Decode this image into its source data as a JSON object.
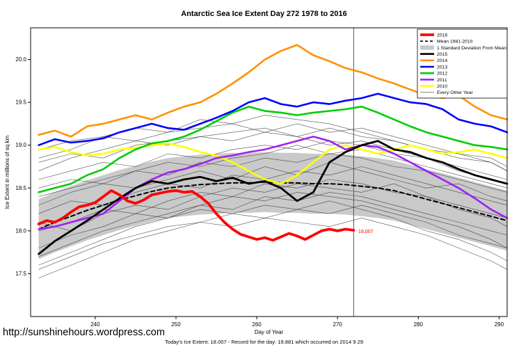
{
  "footer": {
    "url": "http://sunshinehours.wordpress.com",
    "caption": "Today's Ice Extent: 18.007  - Record for the day: 19.881 which occurred on 2014 9 29"
  },
  "chart_data": {
    "type": "line",
    "title": "Antarctic Sea Ice Extent Day 272 1978 to 2016",
    "xlabel": "Day of Year",
    "ylabel": "Ice Extent in millions of sq km",
    "xlim": [
      232,
      291
    ],
    "ylim": [
      17.0,
      20.37
    ],
    "xticks": [
      240,
      250,
      260,
      270,
      280,
      290
    ],
    "yticks": [
      17.5,
      18.0,
      18.5,
      19.0,
      19.5,
      20.0
    ],
    "vline_x": 272,
    "annotation": {
      "x": 272.4,
      "y": 17.99,
      "text": "18.007",
      "color": "#ff0000"
    },
    "band": {
      "name": "1 Standard Deviation From Mean",
      "color": "#c9c9c9",
      "x": [
        233,
        235,
        237,
        239,
        241,
        243,
        245,
        247,
        249,
        251,
        253,
        255,
        257,
        259,
        261,
        263,
        265,
        267,
        269,
        271,
        273,
        275,
        277,
        279,
        281,
        283,
        285,
        287,
        289,
        291
      ],
      "upper": [
        18.37,
        18.45,
        18.52,
        18.59,
        18.65,
        18.71,
        18.76,
        18.81,
        18.85,
        18.87,
        18.89,
        18.9,
        18.91,
        18.91,
        18.92,
        18.91,
        18.91,
        18.9,
        18.9,
        18.89,
        18.87,
        18.85,
        18.82,
        18.77,
        18.72,
        18.67,
        18.62,
        18.57,
        18.52,
        18.47
      ],
      "lower": [
        17.67,
        17.75,
        17.82,
        17.89,
        17.95,
        18.01,
        18.06,
        18.11,
        18.15,
        18.17,
        18.19,
        18.2,
        18.21,
        18.21,
        18.22,
        18.21,
        18.21,
        18.2,
        18.2,
        18.19,
        18.17,
        18.15,
        18.12,
        18.07,
        18.02,
        17.97,
        17.92,
        17.87,
        17.82,
        17.77
      ]
    },
    "other_years": {
      "color": "#3a3a3a",
      "width": 0.6,
      "x": [
        233,
        237,
        241,
        245,
        249,
        253,
        257,
        261,
        265,
        269,
        273,
        277,
        281,
        285,
        289,
        291
      ],
      "lines": [
        [
          17.55,
          17.7,
          17.85,
          17.95,
          18.05,
          18.1,
          18.2,
          18.15,
          18.25,
          18.2,
          18.3,
          18.2,
          18.1,
          17.95,
          17.85,
          17.8
        ],
        [
          17.8,
          17.95,
          18.05,
          18.2,
          18.15,
          18.3,
          18.25,
          18.4,
          18.35,
          18.45,
          18.4,
          18.3,
          18.2,
          18.1,
          18.0,
          17.95
        ],
        [
          18.0,
          18.1,
          18.25,
          18.2,
          18.35,
          18.45,
          18.4,
          18.55,
          18.5,
          18.6,
          18.55,
          18.45,
          18.4,
          18.3,
          18.2,
          18.15
        ],
        [
          18.2,
          18.35,
          18.3,
          18.45,
          18.55,
          18.5,
          18.65,
          18.6,
          18.7,
          18.65,
          18.75,
          18.65,
          18.55,
          18.45,
          18.35,
          18.3
        ],
        [
          18.4,
          18.5,
          18.6,
          18.7,
          18.65,
          18.8,
          18.75,
          18.85,
          18.8,
          18.9,
          18.85,
          18.75,
          18.7,
          18.6,
          18.5,
          18.45
        ],
        [
          18.6,
          18.7,
          18.8,
          18.75,
          18.9,
          18.85,
          18.95,
          19.0,
          18.95,
          19.05,
          19.0,
          18.9,
          18.85,
          18.75,
          18.65,
          18.6
        ],
        [
          18.8,
          18.9,
          18.85,
          19.0,
          19.05,
          19.1,
          19.05,
          19.15,
          19.1,
          19.2,
          19.1,
          19.05,
          18.95,
          18.85,
          18.8,
          18.7
        ],
        [
          18.95,
          19.05,
          19.1,
          19.05,
          19.15,
          19.2,
          19.25,
          19.15,
          19.25,
          19.15,
          19.2,
          19.1,
          19.0,
          18.9,
          18.85,
          18.75
        ],
        [
          17.45,
          17.6,
          17.75,
          17.9,
          18.0,
          18.1,
          18.05,
          18.15,
          18.1,
          18.05,
          18.15,
          18.05,
          17.95,
          17.8,
          17.65,
          17.55
        ],
        [
          18.1,
          18.0,
          18.2,
          18.3,
          18.25,
          18.4,
          18.5,
          18.45,
          18.55,
          18.5,
          18.45,
          18.55,
          18.4,
          18.25,
          18.15,
          18.05
        ],
        [
          18.3,
          18.45,
          18.55,
          18.5,
          18.6,
          18.7,
          18.6,
          18.75,
          18.65,
          18.8,
          18.7,
          18.6,
          18.5,
          18.55,
          18.4,
          18.35
        ],
        [
          18.5,
          18.6,
          18.55,
          18.7,
          18.8,
          18.75,
          18.85,
          18.9,
          19.0,
          18.9,
          18.95,
          18.85,
          18.75,
          18.65,
          18.55,
          18.5
        ],
        [
          17.7,
          17.85,
          18.0,
          18.1,
          18.2,
          18.3,
          18.4,
          18.35,
          18.45,
          18.4,
          18.35,
          18.25,
          18.15,
          18.05,
          17.9,
          17.8
        ],
        [
          18.7,
          18.85,
          18.95,
          19.05,
          19.0,
          19.1,
          19.15,
          19.2,
          19.1,
          19.0,
          19.05,
          18.95,
          18.85,
          18.7,
          18.6,
          18.55
        ],
        [
          18.85,
          18.95,
          19.1,
          19.2,
          19.15,
          19.3,
          19.25,
          19.35,
          19.3,
          19.25,
          19.15,
          19.05,
          18.95,
          18.9,
          18.8,
          18.7
        ],
        [
          17.6,
          17.75,
          17.9,
          18.05,
          18.15,
          18.25,
          18.2,
          18.3,
          18.25,
          18.35,
          18.25,
          18.15,
          18.0,
          17.9,
          17.75,
          17.65
        ]
      ]
    },
    "series": [
      {
        "name": "Mean 1981-2010",
        "color": "#000000",
        "width": 2,
        "dash": "6,4",
        "x": [
          233,
          235,
          237,
          239,
          241,
          243,
          245,
          247,
          249,
          251,
          253,
          255,
          257,
          259,
          261,
          263,
          265,
          267,
          269,
          271,
          273,
          275,
          277,
          279,
          281,
          283,
          285,
          287,
          289,
          291
        ],
        "y": [
          18.02,
          18.1,
          18.17,
          18.24,
          18.3,
          18.36,
          18.41,
          18.46,
          18.5,
          18.52,
          18.54,
          18.55,
          18.56,
          18.56,
          18.57,
          18.56,
          18.56,
          18.55,
          18.55,
          18.54,
          18.52,
          18.5,
          18.47,
          18.42,
          18.37,
          18.32,
          18.27,
          18.22,
          18.17,
          18.12
        ]
      },
      {
        "name": "2010",
        "color": "#ffff00",
        "width": 2.6,
        "x": [
          233,
          235,
          237,
          239,
          241,
          243,
          245,
          247,
          249,
          251,
          253,
          255,
          257,
          259,
          261,
          263,
          265,
          267,
          269,
          271,
          273,
          275,
          277,
          279,
          281,
          283,
          285,
          287,
          289,
          291
        ],
        "y": [
          18.95,
          18.98,
          18.92,
          18.88,
          18.9,
          18.95,
          18.97,
          19.0,
          19.02,
          18.98,
          18.92,
          18.88,
          18.8,
          18.7,
          18.6,
          18.55,
          18.65,
          18.8,
          18.95,
          19.0,
          18.95,
          18.9,
          18.95,
          19.0,
          18.95,
          18.9,
          18.92,
          18.95,
          18.9,
          18.85
        ]
      },
      {
        "name": "2011",
        "color": "#a020f0",
        "width": 2.6,
        "x": [
          233,
          235,
          237,
          239,
          241,
          243,
          245,
          247,
          249,
          251,
          253,
          255,
          257,
          259,
          261,
          263,
          265,
          267,
          269,
          271,
          273,
          275,
          277,
          279,
          281,
          283,
          285,
          287,
          289,
          291
        ],
        "y": [
          18.02,
          18.05,
          18.1,
          18.15,
          18.2,
          18.35,
          18.5,
          18.6,
          18.68,
          18.72,
          18.78,
          18.85,
          18.88,
          18.92,
          18.95,
          19.0,
          19.05,
          19.1,
          19.05,
          18.95,
          19.0,
          18.98,
          18.9,
          18.8,
          18.7,
          18.6,
          18.5,
          18.38,
          18.25,
          18.15
        ]
      },
      {
        "name": "2012",
        "color": "#00cd00",
        "width": 2.6,
        "x": [
          233,
          235,
          237,
          239,
          241,
          243,
          245,
          247,
          249,
          251,
          253,
          255,
          257,
          259,
          261,
          263,
          265,
          267,
          269,
          271,
          273,
          275,
          277,
          279,
          281,
          283,
          285,
          287,
          289,
          291
        ],
        "y": [
          18.45,
          18.5,
          18.55,
          18.65,
          18.72,
          18.85,
          18.95,
          19.02,
          19.05,
          19.1,
          19.18,
          19.28,
          19.38,
          19.45,
          19.4,
          19.38,
          19.35,
          19.38,
          19.4,
          19.42,
          19.45,
          19.38,
          19.3,
          19.22,
          19.15,
          19.1,
          19.05,
          19.0,
          18.98,
          18.95
        ]
      },
      {
        "name": "2013",
        "color": "#0000ff",
        "width": 2.6,
        "x": [
          233,
          235,
          237,
          239,
          241,
          243,
          245,
          247,
          249,
          251,
          253,
          255,
          257,
          259,
          261,
          263,
          265,
          267,
          269,
          271,
          273,
          275,
          277,
          279,
          281,
          283,
          285,
          287,
          289,
          291
        ],
        "y": [
          19.0,
          19.07,
          19.03,
          19.05,
          19.08,
          19.15,
          19.2,
          19.25,
          19.2,
          19.18,
          19.25,
          19.32,
          19.4,
          19.5,
          19.55,
          19.48,
          19.45,
          19.5,
          19.48,
          19.52,
          19.55,
          19.6,
          19.55,
          19.5,
          19.48,
          19.42,
          19.3,
          19.25,
          19.22,
          19.15
        ]
      },
      {
        "name": "2014",
        "color": "#ff9100",
        "width": 2.6,
        "x": [
          233,
          235,
          237,
          239,
          241,
          243,
          245,
          247,
          249,
          251,
          253,
          255,
          257,
          259,
          261,
          263,
          265,
          267,
          269,
          271,
          273,
          275,
          277,
          279,
          281,
          283,
          285,
          287,
          289,
          291
        ],
        "y": [
          19.12,
          19.17,
          19.1,
          19.22,
          19.25,
          19.3,
          19.35,
          19.3,
          19.38,
          19.45,
          19.5,
          19.6,
          19.72,
          19.85,
          20.0,
          20.1,
          20.17,
          20.05,
          19.98,
          19.9,
          19.85,
          19.78,
          19.72,
          19.65,
          19.58,
          19.55,
          19.58,
          19.45,
          19.35,
          19.3
        ]
      },
      {
        "name": "2015",
        "color": "#000000",
        "width": 2.8,
        "x": [
          233,
          235,
          237,
          239,
          241,
          243,
          245,
          247,
          249,
          251,
          253,
          255,
          257,
          259,
          261,
          263,
          265,
          267,
          269,
          271,
          273,
          275,
          277,
          279,
          281,
          283,
          285,
          287,
          289,
          291
        ],
        "y": [
          17.73,
          17.88,
          18.0,
          18.12,
          18.25,
          18.38,
          18.5,
          18.58,
          18.55,
          18.6,
          18.63,
          18.58,
          18.62,
          18.55,
          18.58,
          18.5,
          18.35,
          18.45,
          18.8,
          18.92,
          19.0,
          19.05,
          18.95,
          18.92,
          18.85,
          18.8,
          18.72,
          18.65,
          18.6,
          18.55
        ]
      },
      {
        "name": "2016",
        "color": "#ff0000",
        "width": 3.8,
        "x": [
          233,
          234,
          235,
          236,
          237,
          238,
          239,
          240,
          241,
          242,
          243,
          244,
          245,
          246,
          247,
          248,
          249,
          250,
          251,
          252,
          253,
          254,
          255,
          256,
          257,
          258,
          259,
          260,
          261,
          262,
          263,
          264,
          265,
          266,
          267,
          268,
          269,
          270,
          271,
          272
        ],
        "y": [
          18.08,
          18.12,
          18.1,
          18.15,
          18.22,
          18.28,
          18.3,
          18.33,
          18.4,
          18.47,
          18.42,
          18.35,
          18.32,
          18.36,
          18.42,
          18.44,
          18.46,
          18.47,
          18.45,
          18.46,
          18.4,
          18.32,
          18.2,
          18.1,
          18.02,
          17.96,
          17.93,
          17.9,
          17.92,
          17.89,
          17.93,
          17.97,
          17.94,
          17.9,
          17.95,
          18.0,
          18.02,
          18.0,
          18.02,
          18.007
        ]
      }
    ],
    "legend": [
      {
        "label": "2016",
        "color": "#ff0000",
        "lw": 3.8
      },
      {
        "label": "Mean 1981-2010",
        "color": "#000000",
        "lw": 1.6,
        "dash": "4,3"
      },
      {
        "label": "1 Standard Deviation From Mean",
        "color": "#c9c9c9",
        "band": true
      },
      {
        "label": "2015",
        "color": "#000000",
        "lw": 2.6
      },
      {
        "label": "2014",
        "color": "#ff9100",
        "lw": 2.6
      },
      {
        "label": "2013",
        "color": "#0000ff",
        "lw": 2.6
      },
      {
        "label": "2012",
        "color": "#00cd00",
        "lw": 2.6
      },
      {
        "label": "2011",
        "color": "#a020f0",
        "lw": 2.6
      },
      {
        "label": "2010",
        "color": "#ffff00",
        "lw": 2.6
      },
      {
        "label": "Every Other Year",
        "color": "#3a3a3a",
        "lw": 0.6
      }
    ]
  }
}
